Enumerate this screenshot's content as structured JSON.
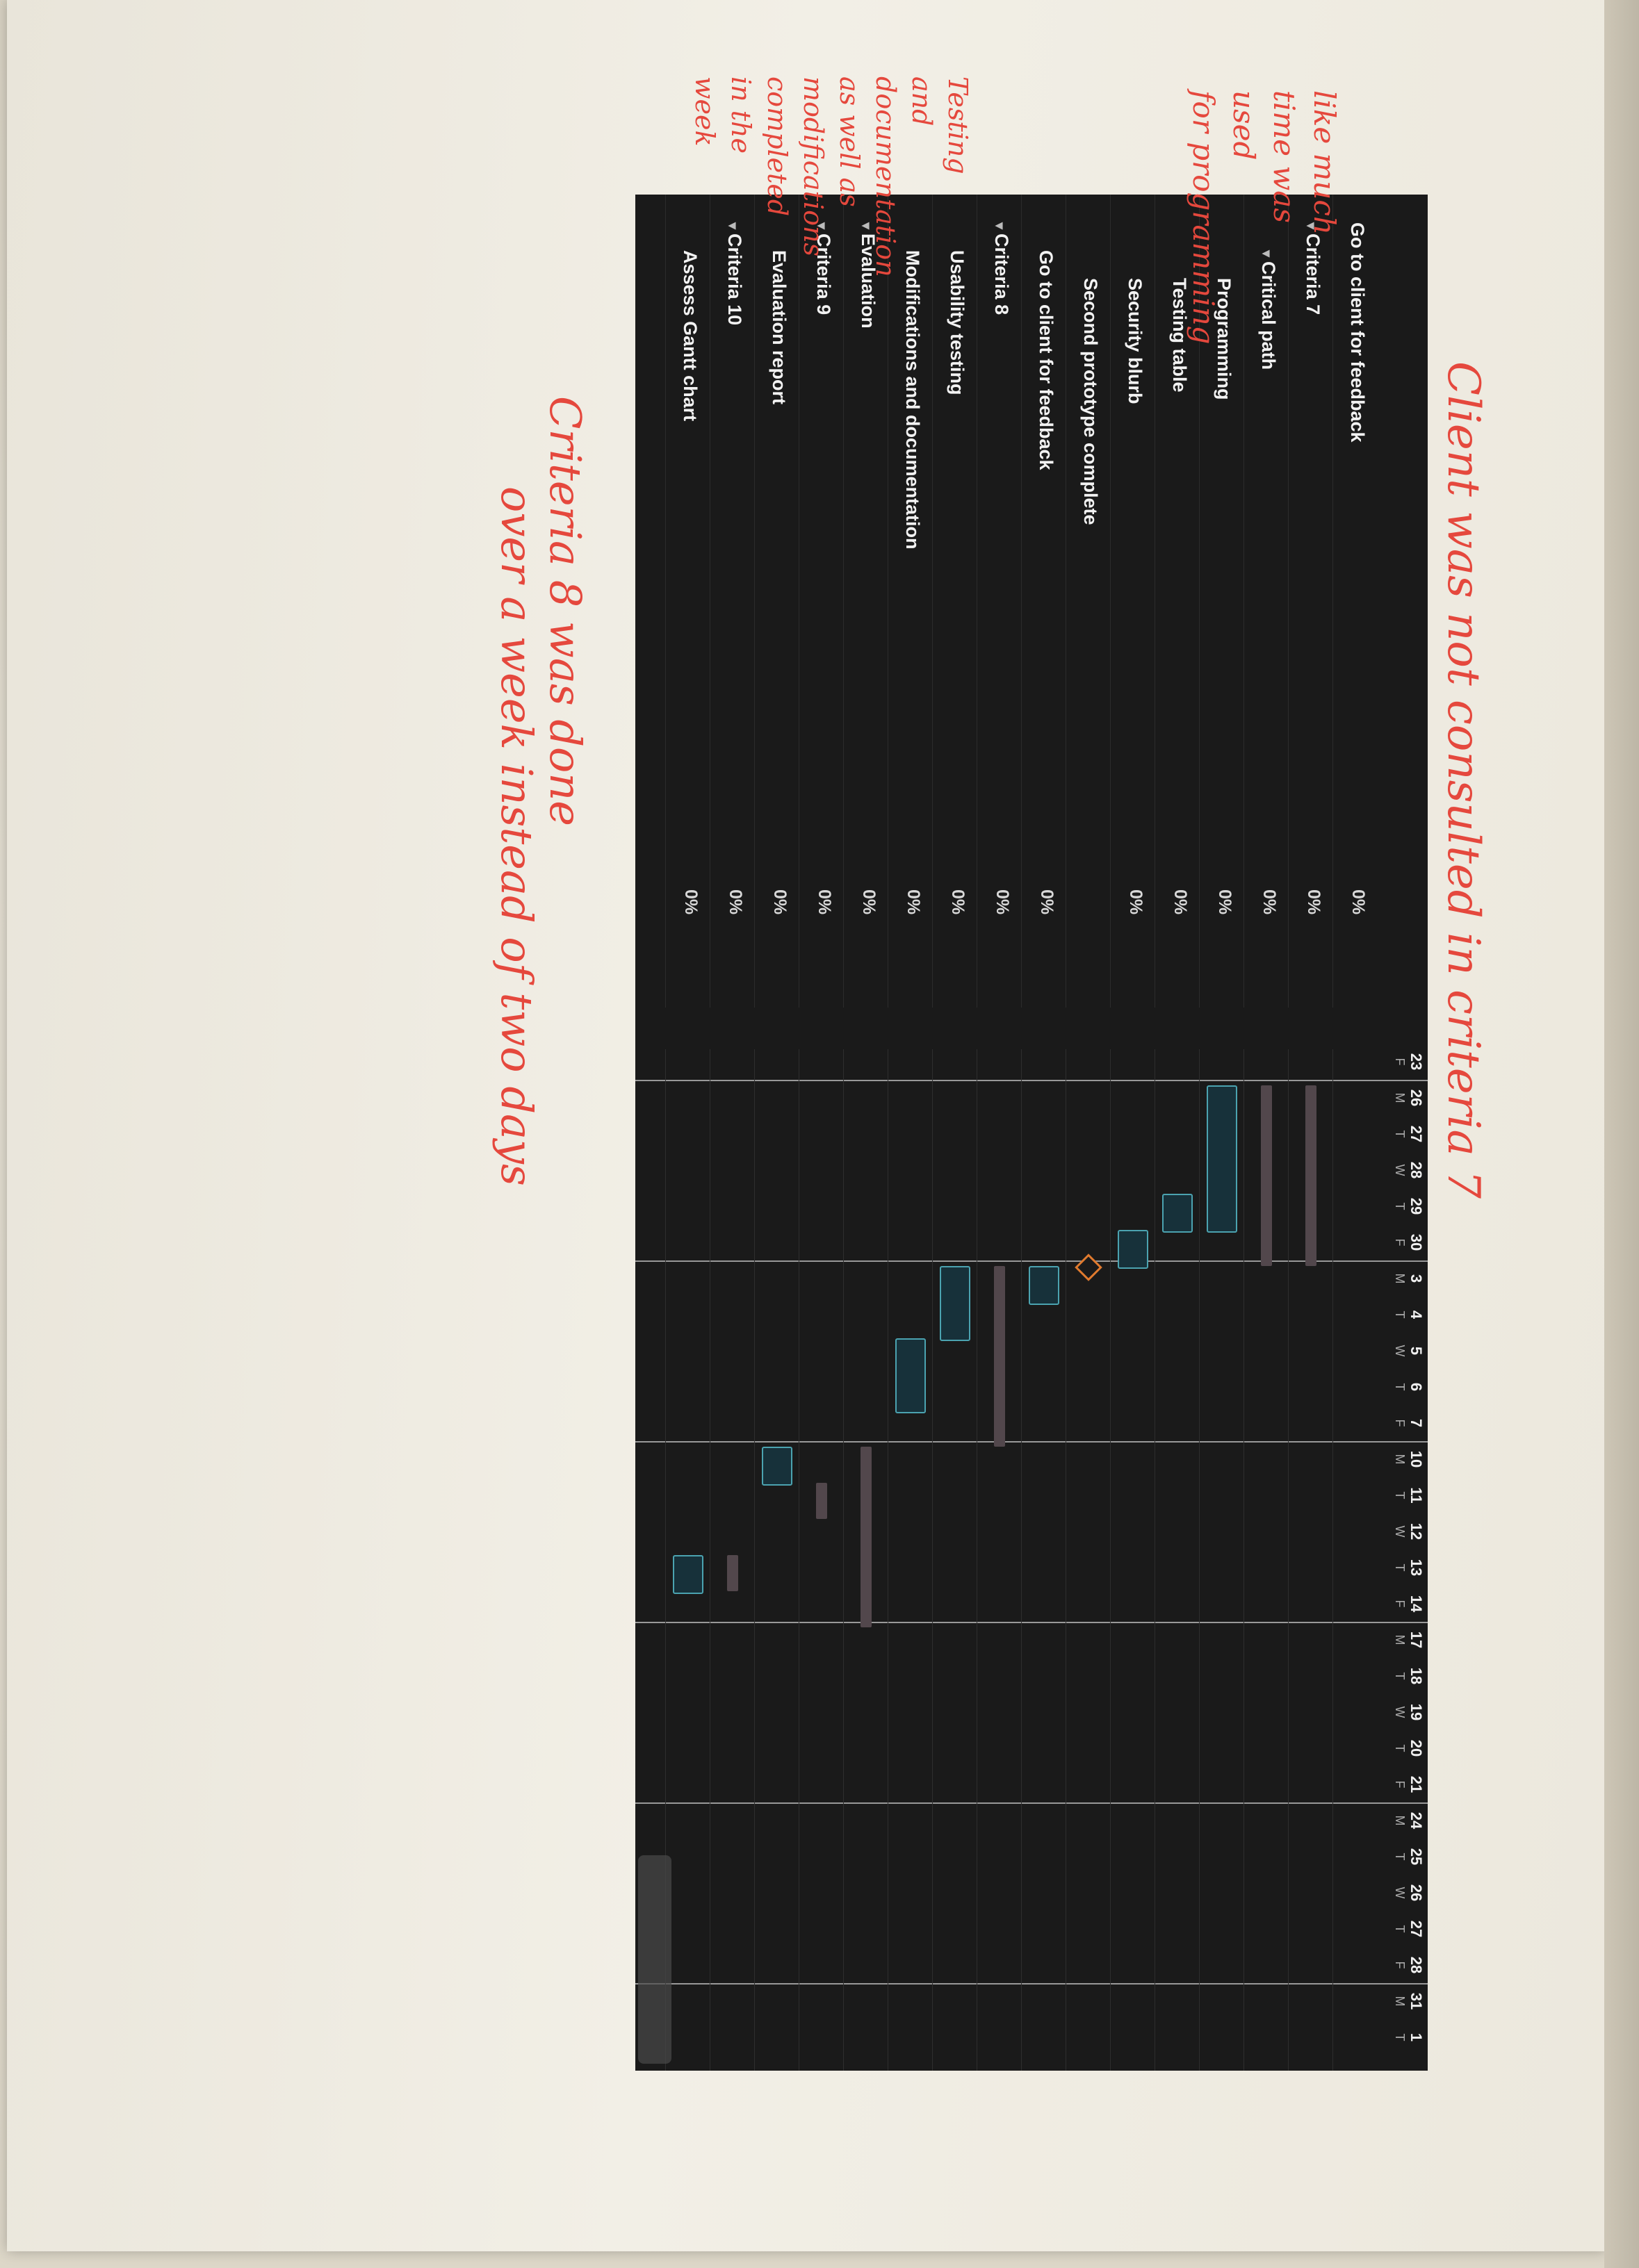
{
  "tasks": [
    {
      "name": "Go to client for feedback",
      "pct": "0%",
      "level": 0,
      "group": false
    },
    {
      "name": "Criteria 7",
      "pct": "0%",
      "level": 0,
      "group": true
    },
    {
      "name": "Critical path",
      "pct": "0%",
      "level": 1,
      "group": true
    },
    {
      "name": "Programming",
      "pct": "0%",
      "level": 2,
      "group": false
    },
    {
      "name": "Testing table",
      "pct": "0%",
      "level": 2,
      "group": false
    },
    {
      "name": "Security blurb",
      "pct": "0%",
      "level": 2,
      "group": false
    },
    {
      "name": "Second prototype complete",
      "pct": "",
      "level": 2,
      "group": false
    },
    {
      "name": "Go to client for feedback",
      "pct": "0%",
      "level": 1,
      "group": false
    },
    {
      "name": "Criteria 8",
      "pct": "0%",
      "level": 0,
      "group": true
    },
    {
      "name": "Usability testing",
      "pct": "0%",
      "level": 1,
      "group": false
    },
    {
      "name": "Modifications and documentation",
      "pct": "0%",
      "level": 1,
      "group": false
    },
    {
      "name": "Evaluation",
      "pct": "0%",
      "level": 0,
      "group": true
    },
    {
      "name": "Criteria 9",
      "pct": "0%",
      "level": 0,
      "group": true
    },
    {
      "name": "Evaluation report",
      "pct": "0%",
      "level": 1,
      "group": false
    },
    {
      "name": "Criteria 10",
      "pct": "0%",
      "level": 0,
      "group": true
    },
    {
      "name": "Assess Gantt chart",
      "pct": "0%",
      "level": 1,
      "group": false
    }
  ],
  "timeline": {
    "days": [
      "23",
      "26",
      "27",
      "28",
      "29",
      "30",
      "3",
      "4",
      "5",
      "6",
      "7",
      "10",
      "11",
      "12",
      "13",
      "14",
      "17",
      "18",
      "19",
      "20",
      "21",
      "24",
      "25",
      "26",
      "27",
      "28",
      "31",
      "1"
    ],
    "dows": [
      "F",
      "M",
      "T",
      "W",
      "T",
      "F",
      "M",
      "T",
      "W",
      "T",
      "F",
      "M",
      "T",
      "W",
      "T",
      "F",
      "M",
      "T",
      "W",
      "T",
      "F",
      "M",
      "T",
      "W",
      "T",
      "F",
      "M",
      "T"
    ]
  },
  "bars": [
    {
      "row": 1,
      "type": "summary",
      "start": 1,
      "end": 6
    },
    {
      "row": 2,
      "type": "summary",
      "start": 1,
      "end": 6
    },
    {
      "row": 3,
      "type": "task",
      "start": 1,
      "end": 5
    },
    {
      "row": 4,
      "type": "task",
      "start": 4,
      "end": 5
    },
    {
      "row": 5,
      "type": "task",
      "start": 5,
      "end": 6
    },
    {
      "row": 6,
      "type": "milestone",
      "start": 6,
      "end": 6
    },
    {
      "row": 7,
      "type": "task",
      "start": 6,
      "end": 7
    },
    {
      "row": 8,
      "type": "summary",
      "start": 6,
      "end": 11
    },
    {
      "row": 9,
      "type": "task",
      "start": 6,
      "end": 8
    },
    {
      "row": 10,
      "type": "task",
      "start": 8,
      "end": 10
    },
    {
      "row": 11,
      "type": "summary",
      "start": 11,
      "end": 16
    },
    {
      "row": 12,
      "type": "summary",
      "start": 12,
      "end": 13
    },
    {
      "row": 13,
      "type": "task",
      "start": 11,
      "end": 12
    },
    {
      "row": 14,
      "type": "summary",
      "start": 14,
      "end": 15
    },
    {
      "row": 15,
      "type": "task",
      "start": 14,
      "end": 15
    }
  ],
  "annotations": {
    "top": "Client was not consulted in criteria 7",
    "bottom_line1": "Criteria 8 was done",
    "bottom_line2": "over a week instead of two days",
    "left1_lines": [
      "like much",
      "time was",
      "used",
      "for programming"
    ],
    "left2_lines": [
      "Testing",
      "and",
      "documentation",
      "as well as",
      "modifications",
      "completed",
      "in the",
      "week"
    ]
  },
  "colors": {
    "background": "#1a1a1a",
    "task_bar": "#4ba3b0",
    "milestone": "#e07a2e",
    "summary_bar": "#52474c",
    "ink": "#e5483d"
  }
}
